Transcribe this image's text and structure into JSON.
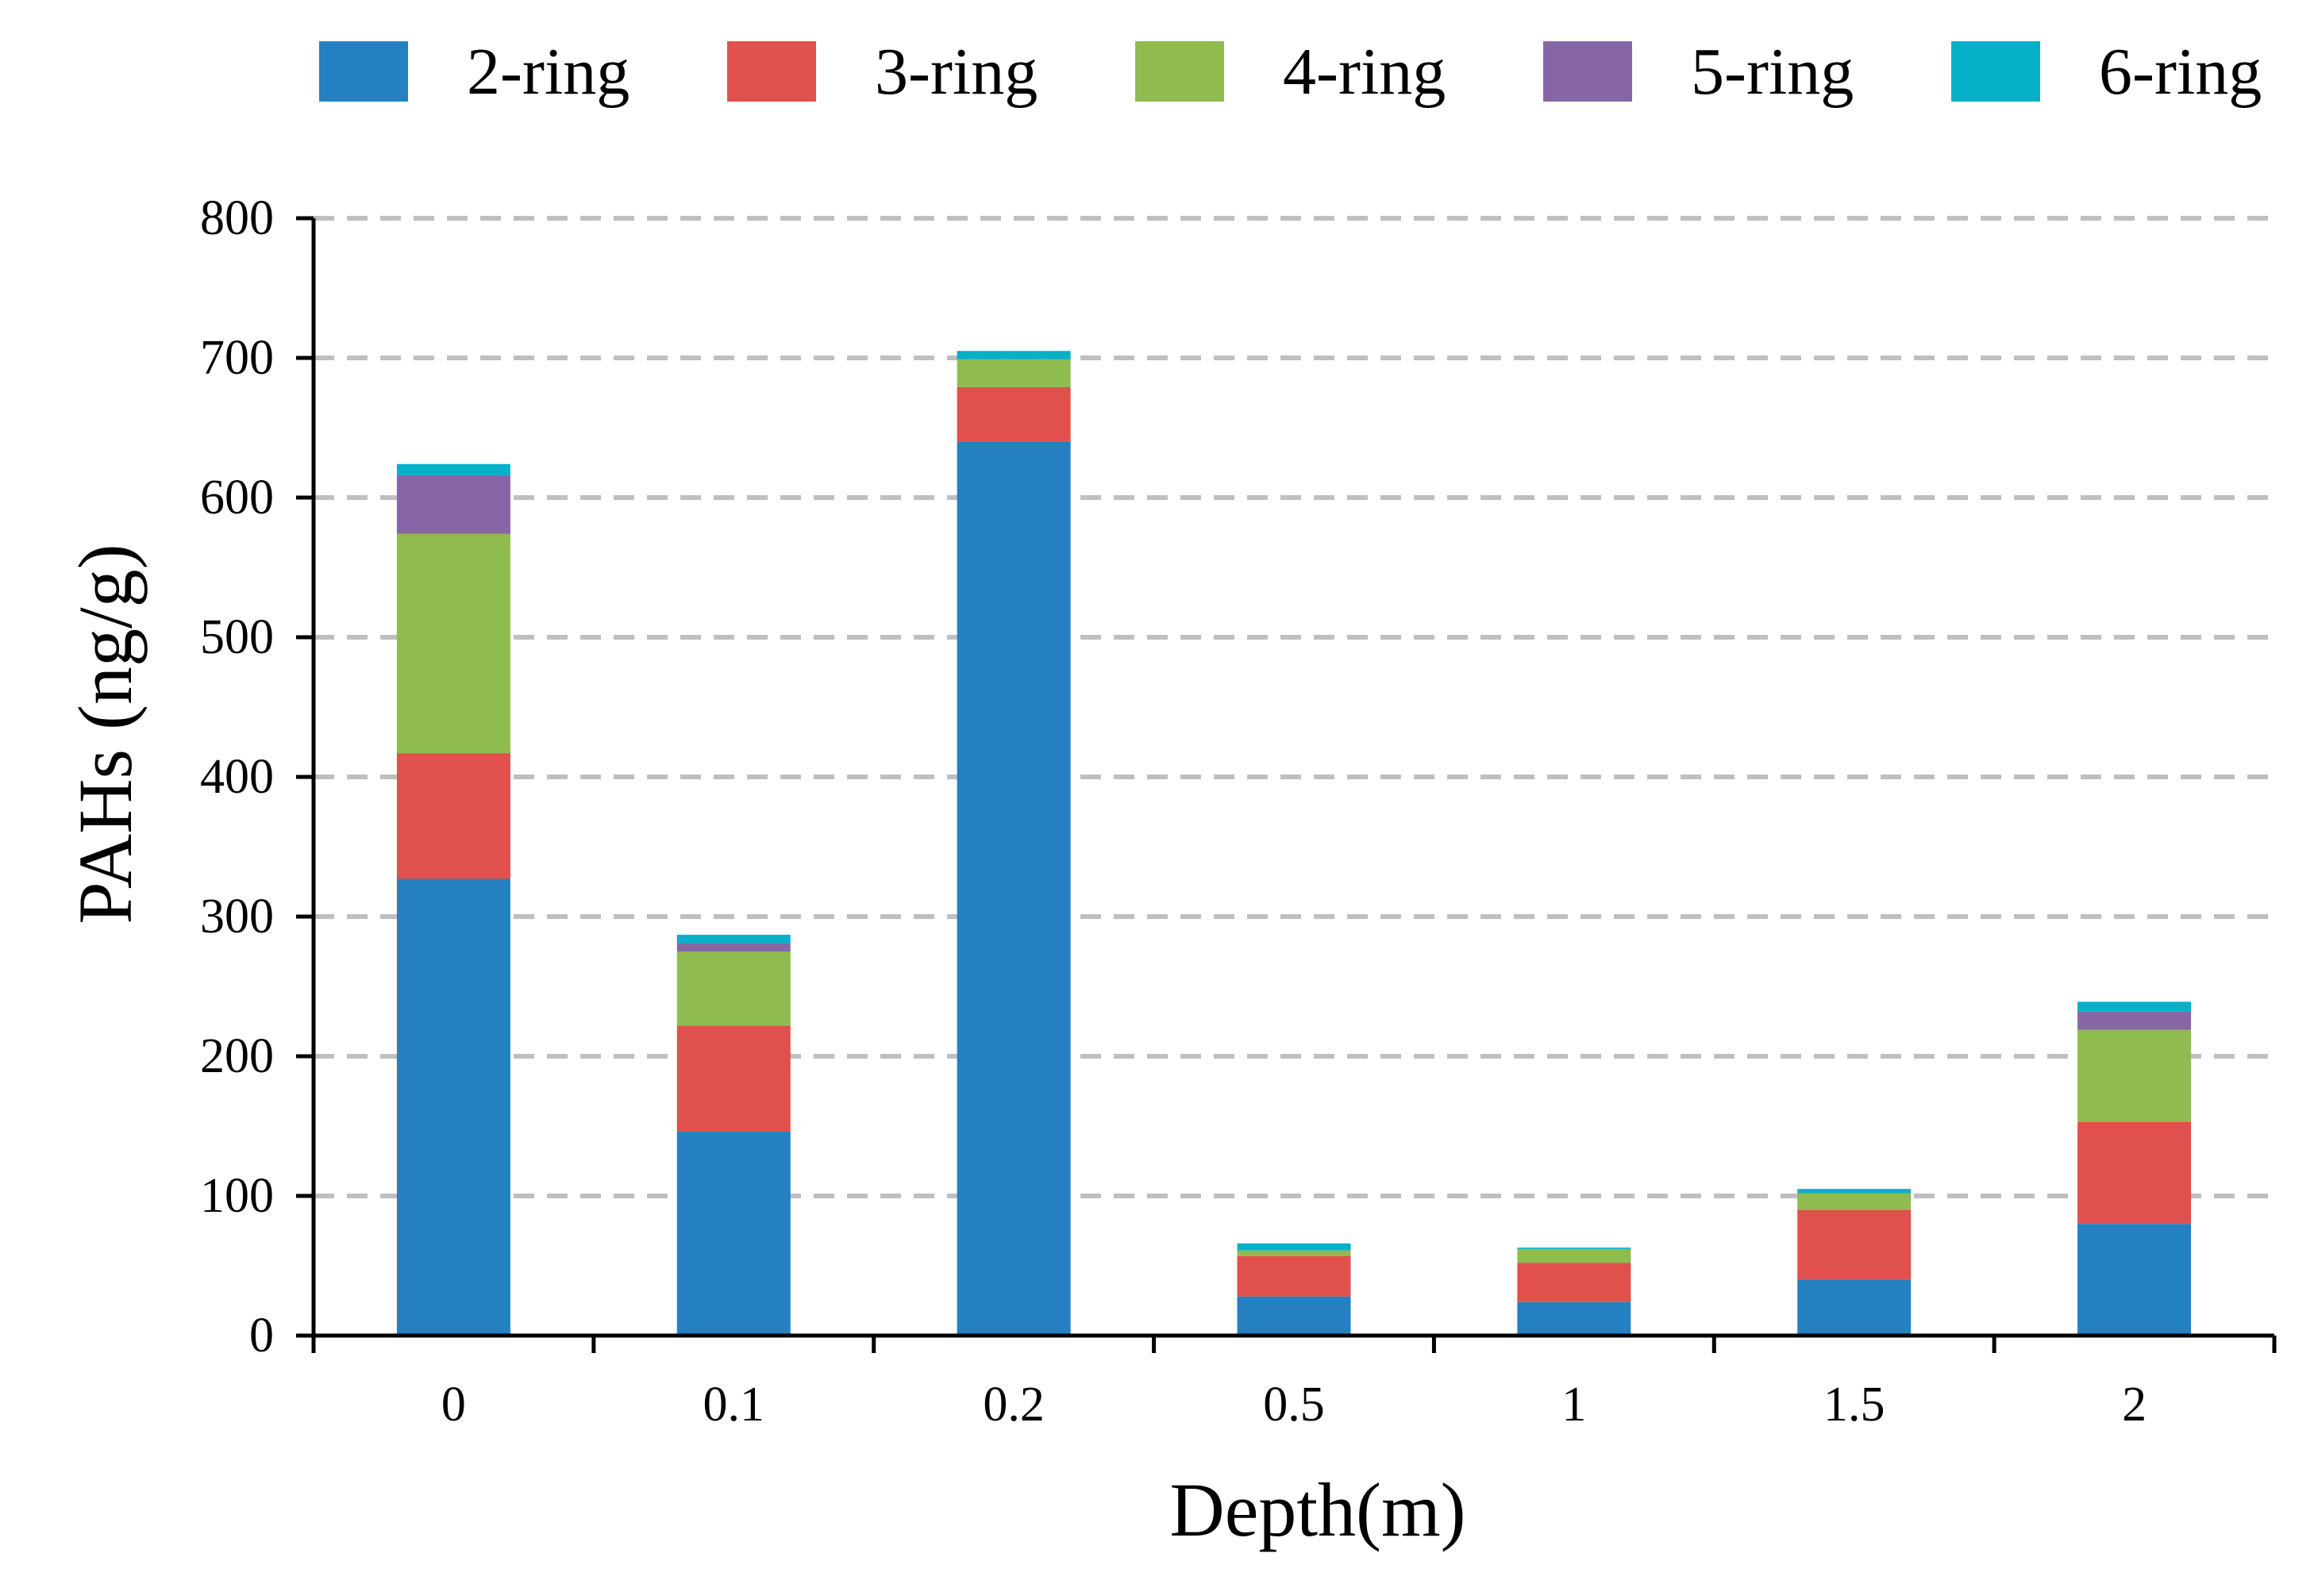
{
  "chart_data": {
    "type": "bar",
    "stacked": true,
    "title": "",
    "xlabel": "Depth(m)",
    "ylabel": "PAHs (ng/g)",
    "ylim": [
      0,
      800
    ],
    "yticks": [
      0,
      100,
      200,
      300,
      400,
      500,
      600,
      700,
      800
    ],
    "grid": "dashed horizontal",
    "legend_position": "top",
    "categories": [
      "0",
      "0.1",
      "0.2",
      "0.5",
      "1",
      "1.5",
      "2"
    ],
    "series": [
      {
        "name": "2-ring",
        "color": "#2580C2",
        "values": [
          327,
          146,
          640,
          28,
          24,
          40,
          80
        ]
      },
      {
        "name": "3-ring",
        "color": "#E0504D",
        "values": [
          90,
          76,
          39,
          29,
          28,
          50,
          73
        ]
      },
      {
        "name": "4-ring",
        "color": "#8FBB4F",
        "values": [
          157,
          53,
          20,
          4,
          10,
          12,
          66
        ]
      },
      {
        "name": "5-ring",
        "color": "#8766A8",
        "values": [
          42,
          6,
          0,
          0,
          0,
          0,
          13
        ]
      },
      {
        "name": "6-ring",
        "color": "#06B0C9",
        "values": [
          8,
          6,
          6,
          5,
          1,
          3,
          7
        ]
      }
    ]
  }
}
